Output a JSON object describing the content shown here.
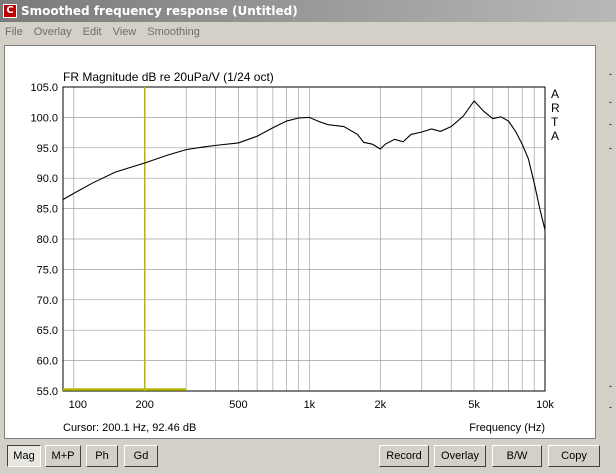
{
  "window": {
    "title": "Smoothed frequency response (Untitled)",
    "icon": "app-icon"
  },
  "menu": [
    "File",
    "Overlay",
    "Edit",
    "View",
    "Smoothing"
  ],
  "plot": {
    "title": "FR Magnitude dB re 20uPa/V (1/24 oct)",
    "brand": [
      "A",
      "R",
      "T",
      "A"
    ],
    "cursor_text": "Cursor: 200.1 Hz, 92.46 dB",
    "xlabel": "Frequency (Hz)"
  },
  "chart_data": {
    "type": "line",
    "title": "FR Magnitude dB re 20uPa/V (1/24 oct)",
    "xlabel": "Frequency (Hz)",
    "ylabel": "",
    "x_scale": "log",
    "xlim": [
      90,
      10000
    ],
    "ylim": [
      55,
      105
    ],
    "grid": true,
    "x_ticks": [
      {
        "value": 100,
        "label": "100"
      },
      {
        "value": 200,
        "label": "200"
      },
      {
        "value": 500,
        "label": "500"
      },
      {
        "value": 1000,
        "label": "1k"
      },
      {
        "value": 2000,
        "label": "2k"
      },
      {
        "value": 5000,
        "label": "5k"
      },
      {
        "value": 10000,
        "label": "10k"
      }
    ],
    "y_ticks": [
      "55.0",
      "60.0",
      "65.0",
      "70.0",
      "75.0",
      "80.0",
      "85.0",
      "90.0",
      "95.0",
      "100.0",
      "105.0"
    ],
    "series": [
      {
        "color": "#000000",
        "points": [
          [
            90,
            86.5
          ],
          [
            100,
            87.5
          ],
          [
            120,
            89.2
          ],
          [
            150,
            91.0
          ],
          [
            200,
            92.5
          ],
          [
            250,
            93.8
          ],
          [
            300,
            94.7
          ],
          [
            350,
            95.1
          ],
          [
            400,
            95.4
          ],
          [
            500,
            95.8
          ],
          [
            600,
            96.9
          ],
          [
            700,
            98.3
          ],
          [
            800,
            99.4
          ],
          [
            900,
            99.9
          ],
          [
            1000,
            100.0
          ],
          [
            1100,
            99.3
          ],
          [
            1200,
            98.8
          ],
          [
            1400,
            98.5
          ],
          [
            1600,
            97.2
          ],
          [
            1700,
            95.9
          ],
          [
            1850,
            95.6
          ],
          [
            2000,
            94.8
          ],
          [
            2100,
            95.6
          ],
          [
            2300,
            96.4
          ],
          [
            2500,
            96.0
          ],
          [
            2700,
            97.2
          ],
          [
            3000,
            97.6
          ],
          [
            3300,
            98.1
          ],
          [
            3600,
            97.7
          ],
          [
            4000,
            98.5
          ],
          [
            4500,
            100.2
          ],
          [
            5000,
            102.7
          ],
          [
            5500,
            101.0
          ],
          [
            6000,
            99.8
          ],
          [
            6500,
            100.1
          ],
          [
            7000,
            99.4
          ],
          [
            7500,
            97.7
          ],
          [
            8000,
            95.6
          ],
          [
            8500,
            93.2
          ],
          [
            9000,
            89.2
          ],
          [
            9500,
            85.0
          ],
          [
            10000,
            81.5
          ]
        ]
      }
    ],
    "cursor": {
      "x": 200.1,
      "y": 92.46,
      "color": "#b8b800",
      "marker_x_end": 300
    }
  },
  "buttons": {
    "mag": "Mag",
    "mp": "M+P",
    "ph": "Ph",
    "gd": "Gd",
    "record": "Record",
    "overlay": "Overlay",
    "bw": "B/W",
    "copy": "Copy"
  }
}
